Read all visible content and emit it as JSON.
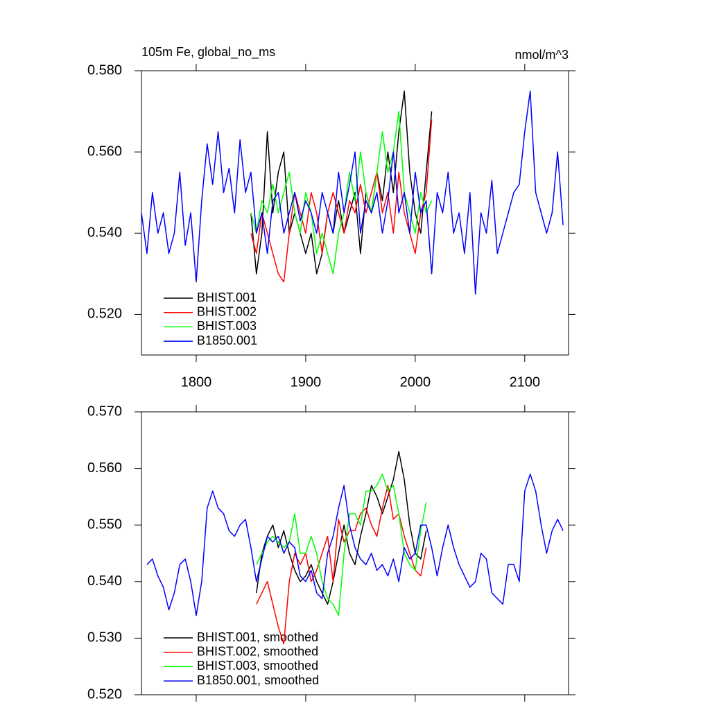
{
  "chart_data": [
    {
      "type": "line",
      "title": "105m Fe, global_no_ms",
      "subtitle": "nmol/m^3",
      "x": [
        1750,
        1755,
        1760,
        1765,
        1770,
        1775,
        1780,
        1785,
        1790,
        1795,
        1800,
        1805,
        1810,
        1815,
        1820,
        1825,
        1830,
        1835,
        1840,
        1845,
        1850,
        1855,
        1860,
        1865,
        1870,
        1875,
        1880,
        1885,
        1890,
        1895,
        1900,
        1905,
        1910,
        1915,
        1920,
        1925,
        1930,
        1935,
        1940,
        1945,
        1950,
        1955,
        1960,
        1965,
        1970,
        1975,
        1980,
        1985,
        1990,
        1995,
        2000,
        2005,
        2010,
        2015,
        2020,
        2025,
        2030,
        2035,
        2040,
        2045,
        2050,
        2055,
        2060,
        2065,
        2070,
        2075,
        2080,
        2085,
        2090,
        2095,
        2100,
        2105,
        2110,
        2115,
        2120,
        2125,
        2130,
        2135
      ],
      "xlim": [
        1750,
        2140
      ],
      "xticks": [
        1800,
        1900,
        2000,
        2100
      ],
      "ylim": [
        0.51,
        0.58
      ],
      "yticks": [
        {
          "value": 0.52,
          "label": "0.520"
        },
        {
          "value": 0.54,
          "label": "0.540"
        },
        {
          "value": 0.56,
          "label": "0.560"
        },
        {
          "value": 0.58,
          "label": "0.580"
        }
      ],
      "series": [
        {
          "name": "BHIST.001",
          "color": "#000000",
          "values": [
            null,
            null,
            null,
            null,
            null,
            null,
            null,
            null,
            null,
            null,
            null,
            null,
            null,
            null,
            null,
            null,
            null,
            null,
            null,
            null,
            0.545,
            0.53,
            0.54,
            0.565,
            0.545,
            0.555,
            0.56,
            0.54,
            0.545,
            0.54,
            0.535,
            0.54,
            0.53,
            0.535,
            0.545,
            0.54,
            0.548,
            0.54,
            0.545,
            0.55,
            0.535,
            0.55,
            0.545,
            0.555,
            0.548,
            0.56,
            0.55,
            0.565,
            0.575,
            0.555,
            0.545,
            0.54,
            0.555,
            0.57,
            null,
            null,
            null,
            null,
            null,
            null,
            null,
            null,
            null,
            null,
            null,
            null,
            null,
            null,
            null,
            null,
            null,
            null,
            null,
            null,
            null,
            null,
            null,
            null
          ]
        },
        {
          "name": "BHIST.002",
          "color": "#ff0000",
          "values": [
            null,
            null,
            null,
            null,
            null,
            null,
            null,
            null,
            null,
            null,
            null,
            null,
            null,
            null,
            null,
            null,
            null,
            null,
            null,
            null,
            0.54,
            0.535,
            0.545,
            0.54,
            0.535,
            0.53,
            0.528,
            0.54,
            0.55,
            0.545,
            0.54,
            0.55,
            0.545,
            0.535,
            0.545,
            0.55,
            0.545,
            0.54,
            0.548,
            0.545,
            0.552,
            0.545,
            0.55,
            0.555,
            0.545,
            0.55,
            0.54,
            0.555,
            0.545,
            0.54,
            0.535,
            0.545,
            0.55,
            0.568,
            null,
            null,
            null,
            null,
            null,
            null,
            null,
            null,
            null,
            null,
            null,
            null,
            null,
            null,
            null,
            null,
            null,
            null,
            null,
            null,
            null,
            null,
            null,
            null
          ]
        },
        {
          "name": "BHIST.003",
          "color": "#00ff00",
          "values": [
            null,
            null,
            null,
            null,
            null,
            null,
            null,
            null,
            null,
            null,
            null,
            null,
            null,
            null,
            null,
            null,
            null,
            null,
            null,
            null,
            0.545,
            0.54,
            0.548,
            0.545,
            0.552,
            0.545,
            0.55,
            0.555,
            0.545,
            0.54,
            0.55,
            0.545,
            0.535,
            0.54,
            0.535,
            0.53,
            0.54,
            0.545,
            0.555,
            0.548,
            0.56,
            0.55,
            0.545,
            0.555,
            0.565,
            0.555,
            0.56,
            0.57,
            0.55,
            0.545,
            0.54,
            0.55,
            0.545,
            0.548,
            null,
            null,
            null,
            null,
            null,
            null,
            null,
            null,
            null,
            null,
            null,
            null,
            null,
            null,
            null,
            null,
            null,
            null,
            null,
            null,
            null,
            null,
            null,
            null
          ]
        },
        {
          "name": "B1850.001",
          "color": "#0000ff",
          "values": [
            0.545,
            0.535,
            0.55,
            0.54,
            0.545,
            0.535,
            0.54,
            0.555,
            0.537,
            0.545,
            0.528,
            0.548,
            0.562,
            0.552,
            0.565,
            0.55,
            0.556,
            0.545,
            0.563,
            0.55,
            0.555,
            0.54,
            0.545,
            0.535,
            0.548,
            0.55,
            0.54,
            0.545,
            0.55,
            0.543,
            0.548,
            0.545,
            0.54,
            0.55,
            0.545,
            0.54,
            0.555,
            0.545,
            0.552,
            0.56,
            0.54,
            0.548,
            0.545,
            0.55,
            0.54,
            0.548,
            0.56,
            0.545,
            0.55,
            0.54,
            0.555,
            0.545,
            0.548,
            0.53,
            0.55,
            0.545,
            0.555,
            0.54,
            0.545,
            0.535,
            0.55,
            0.525,
            0.545,
            0.54,
            0.553,
            0.535,
            0.54,
            0.545,
            0.55,
            0.552,
            0.565,
            0.575,
            0.55,
            0.545,
            0.54,
            0.545,
            0.56,
            0.542
          ]
        }
      ]
    },
    {
      "type": "line",
      "x": [
        1750,
        1755,
        1760,
        1765,
        1770,
        1775,
        1780,
        1785,
        1790,
        1795,
        1800,
        1805,
        1810,
        1815,
        1820,
        1825,
        1830,
        1835,
        1840,
        1845,
        1850,
        1855,
        1860,
        1865,
        1870,
        1875,
        1880,
        1885,
        1890,
        1895,
        1900,
        1905,
        1910,
        1915,
        1920,
        1925,
        1930,
        1935,
        1940,
        1945,
        1950,
        1955,
        1960,
        1965,
        1970,
        1975,
        1980,
        1985,
        1990,
        1995,
        2000,
        2005,
        2010,
        2015,
        2020,
        2025,
        2030,
        2035,
        2040,
        2045,
        2050,
        2055,
        2060,
        2065,
        2070,
        2075,
        2080,
        2085,
        2090,
        2095,
        2100,
        2105,
        2110,
        2115,
        2120,
        2125,
        2130,
        2135
      ],
      "xlim": [
        1750,
        2140
      ],
      "xticks": [
        1800,
        1900,
        2000,
        2100
      ],
      "ylim": [
        0.52,
        0.57
      ],
      "yticks": [
        {
          "value": 0.52,
          "label": "0.520"
        },
        {
          "value": 0.53,
          "label": "0.530"
        },
        {
          "value": 0.54,
          "label": "0.540"
        },
        {
          "value": 0.55,
          "label": "0.550"
        },
        {
          "value": 0.56,
          "label": "0.560"
        },
        {
          "value": 0.57,
          "label": "0.570"
        }
      ],
      "series": [
        {
          "name": "BHIST.001, smoothed",
          "color": "#000000",
          "values": [
            null,
            null,
            null,
            null,
            null,
            null,
            null,
            null,
            null,
            null,
            null,
            null,
            null,
            null,
            null,
            null,
            null,
            null,
            null,
            null,
            null,
            0.538,
            0.545,
            0.548,
            0.55,
            0.546,
            0.549,
            0.545,
            0.542,
            0.54,
            0.541,
            0.543,
            0.54,
            0.538,
            0.536,
            0.54,
            0.545,
            0.55,
            0.545,
            0.543,
            0.548,
            0.552,
            0.557,
            0.555,
            0.552,
            0.555,
            0.558,
            0.563,
            0.558,
            0.55,
            0.545,
            0.544,
            0.549,
            null,
            null,
            null,
            null,
            null,
            null,
            null,
            null,
            null,
            null,
            null,
            null,
            null,
            null,
            null,
            null,
            null,
            null,
            null,
            null,
            null,
            null,
            null,
            null,
            null
          ]
        },
        {
          "name": "BHIST.002, smoothed",
          "color": "#ff0000",
          "values": [
            null,
            null,
            null,
            null,
            null,
            null,
            null,
            null,
            null,
            null,
            null,
            null,
            null,
            null,
            null,
            null,
            null,
            null,
            null,
            null,
            null,
            0.536,
            0.538,
            0.54,
            0.536,
            0.532,
            0.529,
            0.54,
            0.545,
            0.543,
            0.545,
            0.54,
            0.542,
            0.545,
            0.548,
            0.54,
            0.551,
            0.547,
            0.549,
            0.549,
            0.552,
            0.553,
            0.55,
            0.548,
            0.553,
            0.557,
            0.551,
            0.552,
            0.548,
            0.545,
            0.542,
            0.541,
            0.546,
            null,
            null,
            null,
            null,
            null,
            null,
            null,
            null,
            null,
            null,
            null,
            null,
            null,
            null,
            null,
            null,
            null,
            null,
            null,
            null,
            null,
            null,
            null,
            null,
            null
          ]
        },
        {
          "name": "BHIST.003, smoothed",
          "color": "#00ff00",
          "values": [
            null,
            null,
            null,
            null,
            null,
            null,
            null,
            null,
            null,
            null,
            null,
            null,
            null,
            null,
            null,
            null,
            null,
            null,
            null,
            null,
            null,
            0.543,
            0.545,
            0.547,
            0.548,
            0.547,
            0.546,
            0.547,
            0.552,
            0.545,
            0.545,
            0.548,
            0.545,
            0.54,
            0.537,
            0.536,
            0.534,
            0.545,
            0.552,
            0.552,
            0.55,
            0.556,
            0.556,
            0.557,
            0.559,
            0.556,
            0.557,
            0.552,
            0.545,
            0.543,
            0.542,
            0.549,
            0.554,
            null,
            null,
            null,
            null,
            null,
            null,
            null,
            null,
            null,
            null,
            null,
            null,
            null,
            null,
            null,
            null,
            null,
            null,
            null,
            null,
            null,
            null,
            null,
            null,
            null
          ]
        },
        {
          "name": "B1850.001, smoothed",
          "color": "#0000ff",
          "values": [
            null,
            0.543,
            0.544,
            0.541,
            0.539,
            0.535,
            0.538,
            0.543,
            0.544,
            0.54,
            0.534,
            0.54,
            0.553,
            0.556,
            0.553,
            0.552,
            0.549,
            0.548,
            0.55,
            0.551,
            0.546,
            0.54,
            0.544,
            0.548,
            0.547,
            0.548,
            0.545,
            0.547,
            0.546,
            0.541,
            0.54,
            0.542,
            0.538,
            0.537,
            0.545,
            0.548,
            0.553,
            0.557,
            0.55,
            0.546,
            0.544,
            0.543,
            0.545,
            0.542,
            0.543,
            0.541,
            0.544,
            0.54,
            0.546,
            0.544,
            0.545,
            0.55,
            0.55,
            0.546,
            0.541,
            0.546,
            0.55,
            0.546,
            0.543,
            0.541,
            0.539,
            0.54,
            0.545,
            0.544,
            0.538,
            0.537,
            0.536,
            0.543,
            0.543,
            0.54,
            0.556,
            0.559,
            0.556,
            0.55,
            0.545,
            0.549,
            0.551,
            0.549
          ]
        }
      ]
    }
  ]
}
